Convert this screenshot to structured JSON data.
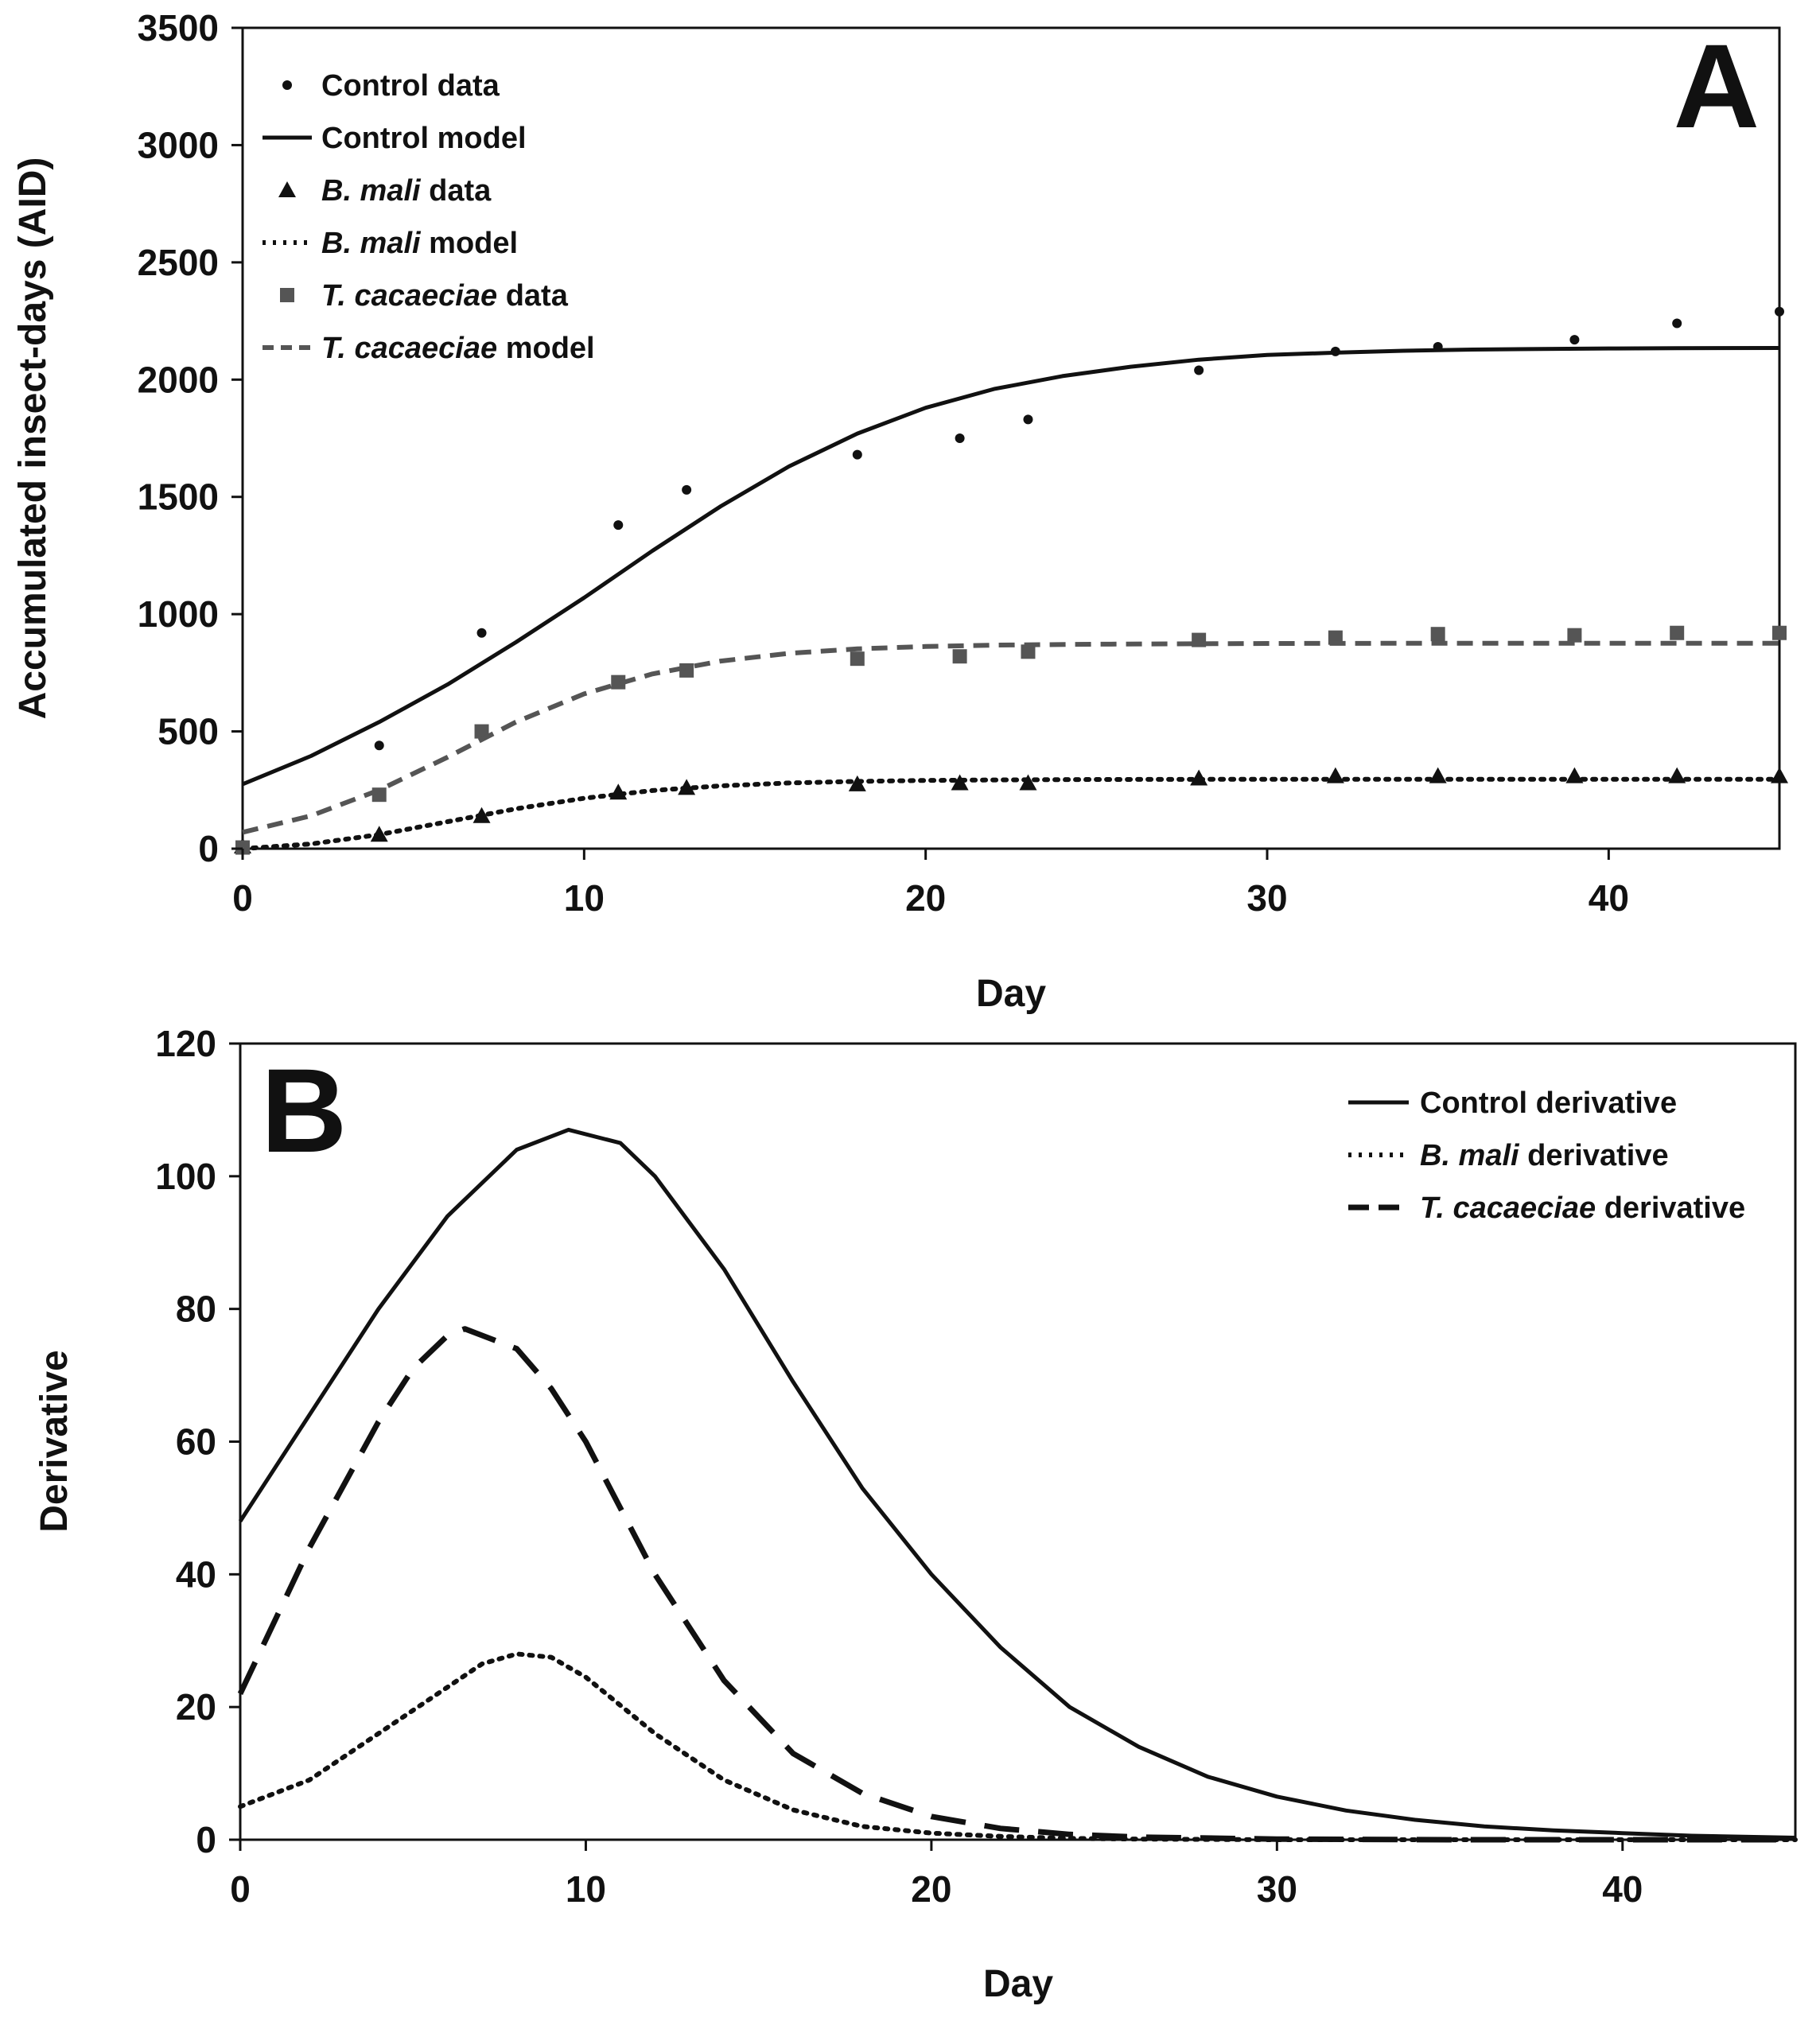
{
  "chart_data": [
    {
      "panel": "A",
      "type": "line",
      "xlabel": "Day",
      "ylabel": "Accumulated insect-days (AID)",
      "xlim": [
        0,
        45
      ],
      "ylim": [
        0,
        3500
      ],
      "xticks": [
        0,
        10,
        20,
        30,
        40
      ],
      "yticks": [
        0,
        500,
        1000,
        1500,
        2000,
        2500,
        3000,
        3500
      ],
      "grid": false,
      "legend_position": "top-left",
      "series": [
        {
          "name": "Control data",
          "legend_label": [
            "",
            "Control data"
          ],
          "kind": "points",
          "marker": "dot",
          "color": "#111111",
          "x": [
            0,
            4,
            7,
            11,
            13,
            18,
            21,
            23,
            28,
            32,
            35,
            39,
            42,
            45
          ],
          "y": [
            0,
            440,
            920,
            1380,
            1530,
            1680,
            1750,
            1830,
            2040,
            2120,
            2140,
            2170,
            2240,
            2290
          ]
        },
        {
          "name": "Control model",
          "legend_label": [
            "",
            "Control model"
          ],
          "kind": "line",
          "dash": "solid",
          "color": "#111111",
          "x": [
            0,
            2,
            4,
            6,
            8,
            10,
            12,
            14,
            16,
            18,
            20,
            22,
            24,
            26,
            28,
            30,
            32,
            34,
            36,
            38,
            40,
            42,
            45
          ],
          "y": [
            275,
            395,
            540,
            700,
            880,
            1070,
            1270,
            1460,
            1630,
            1770,
            1880,
            1960,
            2015,
            2055,
            2085,
            2105,
            2115,
            2123,
            2128,
            2131,
            2133,
            2134,
            2135
          ]
        },
        {
          "name": "B. mali data",
          "legend_label": [
            "B. mali",
            " data"
          ],
          "kind": "points",
          "marker": "triangle",
          "color": "#111111",
          "x": [
            0,
            4,
            7,
            11,
            13,
            18,
            21,
            23,
            28,
            32,
            35,
            39,
            42,
            45
          ],
          "y": [
            10,
            60,
            140,
            240,
            260,
            275,
            280,
            280,
            300,
            310,
            310,
            310,
            310,
            310
          ]
        },
        {
          "name": "B. mali model",
          "legend_label": [
            "B. mali",
            " model"
          ],
          "kind": "line",
          "dash": "dotted",
          "color": "#111111",
          "x": [
            0,
            2,
            4,
            6,
            8,
            10,
            12,
            14,
            16,
            18,
            20,
            22,
            25,
            30,
            35,
            40,
            45
          ],
          "y": [
            0,
            20,
            60,
            115,
            170,
            215,
            248,
            268,
            280,
            287,
            291,
            293,
            295,
            296,
            296,
            296,
            296
          ]
        },
        {
          "name": "T. cacaeciae data",
          "legend_label": [
            "T. cacaeciae",
            " data"
          ],
          "kind": "points",
          "marker": "square",
          "color": "#555555",
          "x": [
            0,
            4,
            7,
            11,
            13,
            18,
            21,
            23,
            28,
            32,
            35,
            39,
            42,
            45
          ],
          "y": [
            5,
            230,
            500,
            710,
            760,
            810,
            820,
            840,
            890,
            900,
            915,
            910,
            920,
            920
          ]
        },
        {
          "name": "T. cacaeciae model",
          "legend_label": [
            "T. cacaeciae",
            " model"
          ],
          "kind": "line",
          "dash": "dashed",
          "color": "#555555",
          "x": [
            0,
            2,
            4,
            6,
            8,
            10,
            12,
            14,
            16,
            18,
            20,
            22,
            25,
            30,
            35,
            40,
            45
          ],
          "y": [
            70,
            140,
            250,
            390,
            540,
            660,
            745,
            800,
            833,
            852,
            862,
            868,
            872,
            875,
            876,
            876,
            876
          ]
        }
      ],
      "annotations": [
        "A"
      ]
    },
    {
      "panel": "B",
      "type": "line",
      "xlabel": "Day",
      "ylabel": "Derivative",
      "xlim": [
        0,
        45
      ],
      "ylim": [
        0,
        120
      ],
      "xticks": [
        0,
        10,
        20,
        30,
        40
      ],
      "yticks": [
        0,
        20,
        40,
        60,
        80,
        100,
        120
      ],
      "grid": false,
      "legend_position": "top-right",
      "series": [
        {
          "name": "Control derivative",
          "legend_label": [
            "",
            "Control derivative"
          ],
          "kind": "line",
          "dash": "solid",
          "color": "#111111",
          "x": [
            0,
            2,
            4,
            6,
            8,
            9.5,
            11,
            12,
            14,
            16,
            18,
            20,
            22,
            24,
            26,
            28,
            30,
            32,
            34,
            36,
            38,
            40,
            42,
            45
          ],
          "y": [
            48,
            64,
            80,
            94,
            104,
            107,
            105,
            100,
            86,
            69,
            53,
            40,
            29,
            20,
            14,
            9.5,
            6.5,
            4.4,
            3,
            2,
            1.4,
            1,
            0.6,
            0.3
          ]
        },
        {
          "name": "B. mali derivative",
          "legend_label": [
            "B. mali",
            " derivative"
          ],
          "kind": "line",
          "dash": "dotted",
          "color": "#111111",
          "x": [
            0,
            2,
            4,
            6,
            7,
            8,
            9,
            10,
            12,
            14,
            16,
            18,
            20,
            22,
            24,
            26,
            30,
            35,
            40,
            45
          ],
          "y": [
            5,
            9,
            16,
            23,
            26.5,
            28,
            27.5,
            24.5,
            16,
            9,
            4.5,
            2,
            1,
            0.5,
            0.2,
            0.1,
            0,
            0,
            0,
            0
          ]
        },
        {
          "name": "T. cacaeciae derivative",
          "legend_label": [
            "T. cacaeciae",
            " derivative"
          ],
          "kind": "line",
          "dash": "longdash",
          "color": "#111111",
          "x": [
            0,
            2,
            4,
            5,
            6,
            6.5,
            7,
            8,
            9,
            10,
            12,
            14,
            16,
            18,
            20,
            22,
            24,
            26,
            30,
            35,
            40,
            45
          ],
          "y": [
            22,
            44,
            63,
            71,
            76,
            77,
            76,
            74,
            68,
            60,
            40,
            24,
            13,
            7,
            3.5,
            1.7,
            0.8,
            0.4,
            0.1,
            0,
            0,
            0
          ]
        }
      ],
      "annotations": [
        "B"
      ]
    }
  ]
}
